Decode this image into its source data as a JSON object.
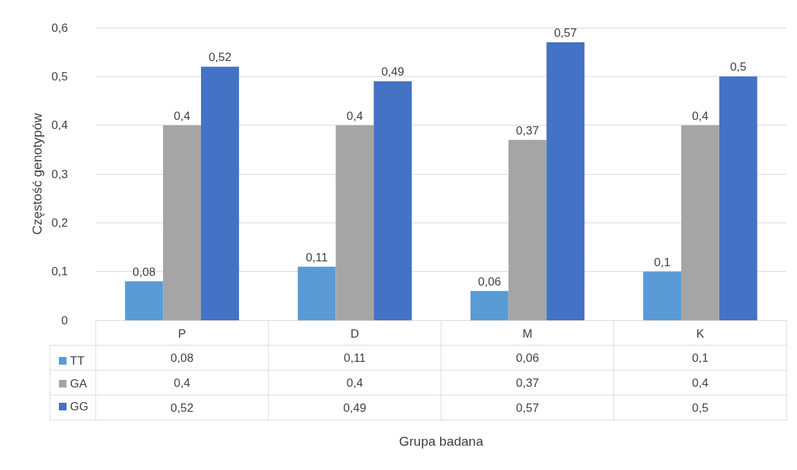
{
  "chart_data": {
    "type": "bar",
    "ylabel": "Częstość genotypów",
    "annotations": [
      "Grupa badana"
    ],
    "categories": [
      "P",
      "D",
      "M",
      "K"
    ],
    "series": [
      {
        "name": "TT",
        "color": "#5b9bd5",
        "values": [
          0.08,
          0.11,
          0.06,
          0.1
        ],
        "value_labels": [
          "0,08",
          "0,11",
          "0,06",
          "0,1"
        ]
      },
      {
        "name": "GA",
        "color": "#a5a5a5",
        "values": [
          0.4,
          0.4,
          0.37,
          0.4
        ],
        "value_labels": [
          "0,4",
          "0,4",
          "0,37",
          "0,4"
        ]
      },
      {
        "name": "GG",
        "color": "#4472c4",
        "values": [
          0.52,
          0.49,
          0.57,
          0.5
        ],
        "value_labels": [
          "0,52",
          "0,49",
          "0,57",
          "0,5"
        ]
      }
    ],
    "ylim": [
      0,
      0.6
    ],
    "yticks": [
      0,
      {
        "value": 0.1,
        "label": "0,1"
      },
      {
        "value": 0.2,
        "label": "0,2"
      },
      {
        "value": 0.3,
        "label": "0,3"
      },
      {
        "value": 0.4,
        "label": "0,4"
      },
      {
        "value": 0.5,
        "label": "0,5"
      },
      {
        "value": 0.6,
        "label": "0,6"
      }
    ],
    "grid": "y",
    "legend": "bottom"
  }
}
